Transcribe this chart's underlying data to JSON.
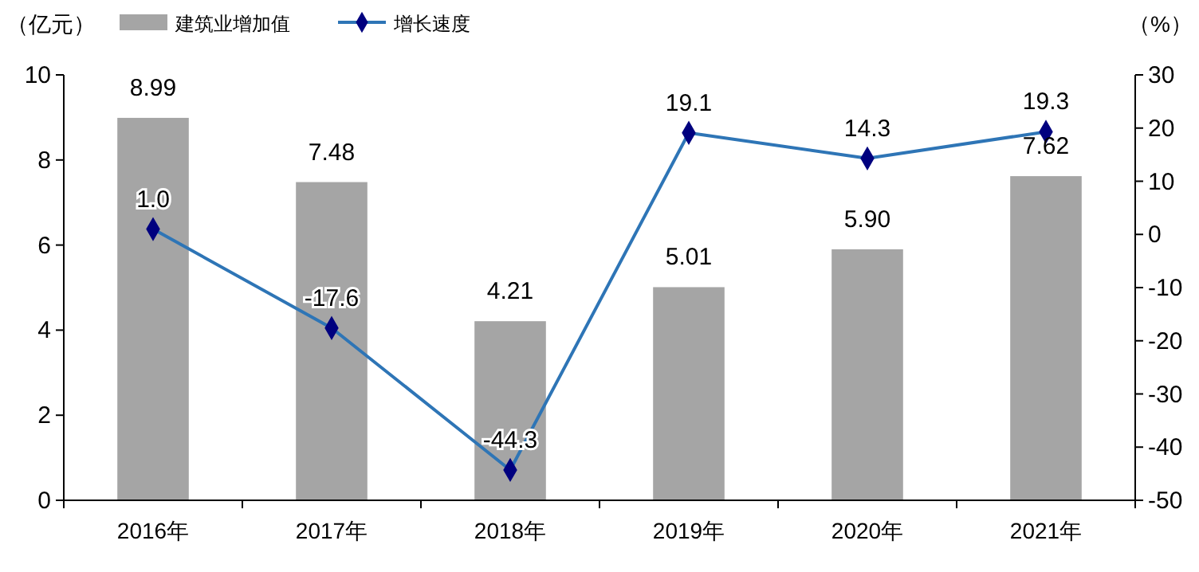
{
  "chart_data": {
    "type": "bar",
    "categories": [
      "2016年",
      "2017年",
      "2018年",
      "2019年",
      "2020年",
      "2021年"
    ],
    "ylabel": "（亿元）",
    "y2label": "（%）",
    "ylim": [
      0,
      10
    ],
    "yticks": [
      0,
      2,
      4,
      6,
      8,
      10
    ],
    "y2lim": [
      -50,
      30
    ],
    "y2ticks": [
      -50,
      -40,
      -30,
      -20,
      -10,
      0,
      10,
      20,
      30
    ],
    "legend": "top left",
    "grid": false,
    "series": [
      {
        "name": "建筑业增加值",
        "color": "#a5a5a5",
        "values": [
          8.99,
          7.48,
          4.21,
          5.01,
          5.9,
          7.62
        ],
        "value_labels": [
          "8.99",
          "7.48",
          "4.21",
          "5.01",
          "5.90",
          "7.62"
        ]
      },
      {
        "name": "增长速度",
        "type": "line",
        "axis": "y2",
        "color": "#2e75b6",
        "marker": "diamond",
        "line_style": "solid",
        "values": [
          1.0,
          -17.6,
          -44.3,
          19.1,
          14.3,
          19.3
        ],
        "value_labels": [
          "1.0",
          "-17.6",
          "-44.3",
          "19.1",
          "14.3",
          "19.3"
        ]
      }
    ]
  }
}
